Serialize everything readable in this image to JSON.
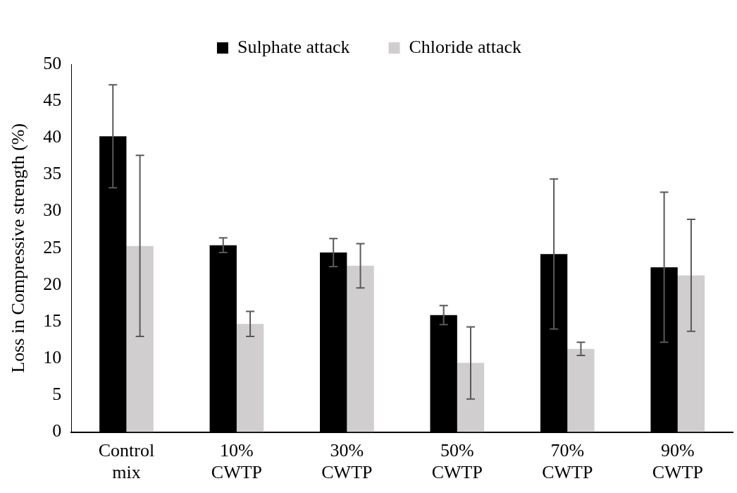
{
  "chart_data": {
    "type": "bar",
    "ylabel": "Loss in Compressive strength (%)",
    "categories": [
      "Control mix",
      "10% CWTP",
      "30% CWTP",
      "50% CWTP",
      "70% CWTP",
      "90% CWTP"
    ],
    "series": [
      {
        "name": "Sulphate attack",
        "color": "#000000",
        "values": [
          40.2,
          25.4,
          24.4,
          15.9,
          24.2,
          22.4
        ],
        "errors": [
          7.0,
          1.0,
          1.9,
          1.3,
          10.2,
          10.2
        ]
      },
      {
        "name": "Chloride attack",
        "color": "#d0cece",
        "values": [
          25.3,
          14.7,
          22.6,
          9.4,
          11.3,
          21.3
        ],
        "errors": [
          12.3,
          1.7,
          3.0,
          4.9,
          0.9,
          7.6
        ]
      }
    ],
    "ylim": [
      0,
      50
    ],
    "yticks": [
      0,
      5,
      10,
      15,
      20,
      25,
      30,
      35,
      40,
      45,
      50
    ],
    "grid": false,
    "legend": "top"
  }
}
